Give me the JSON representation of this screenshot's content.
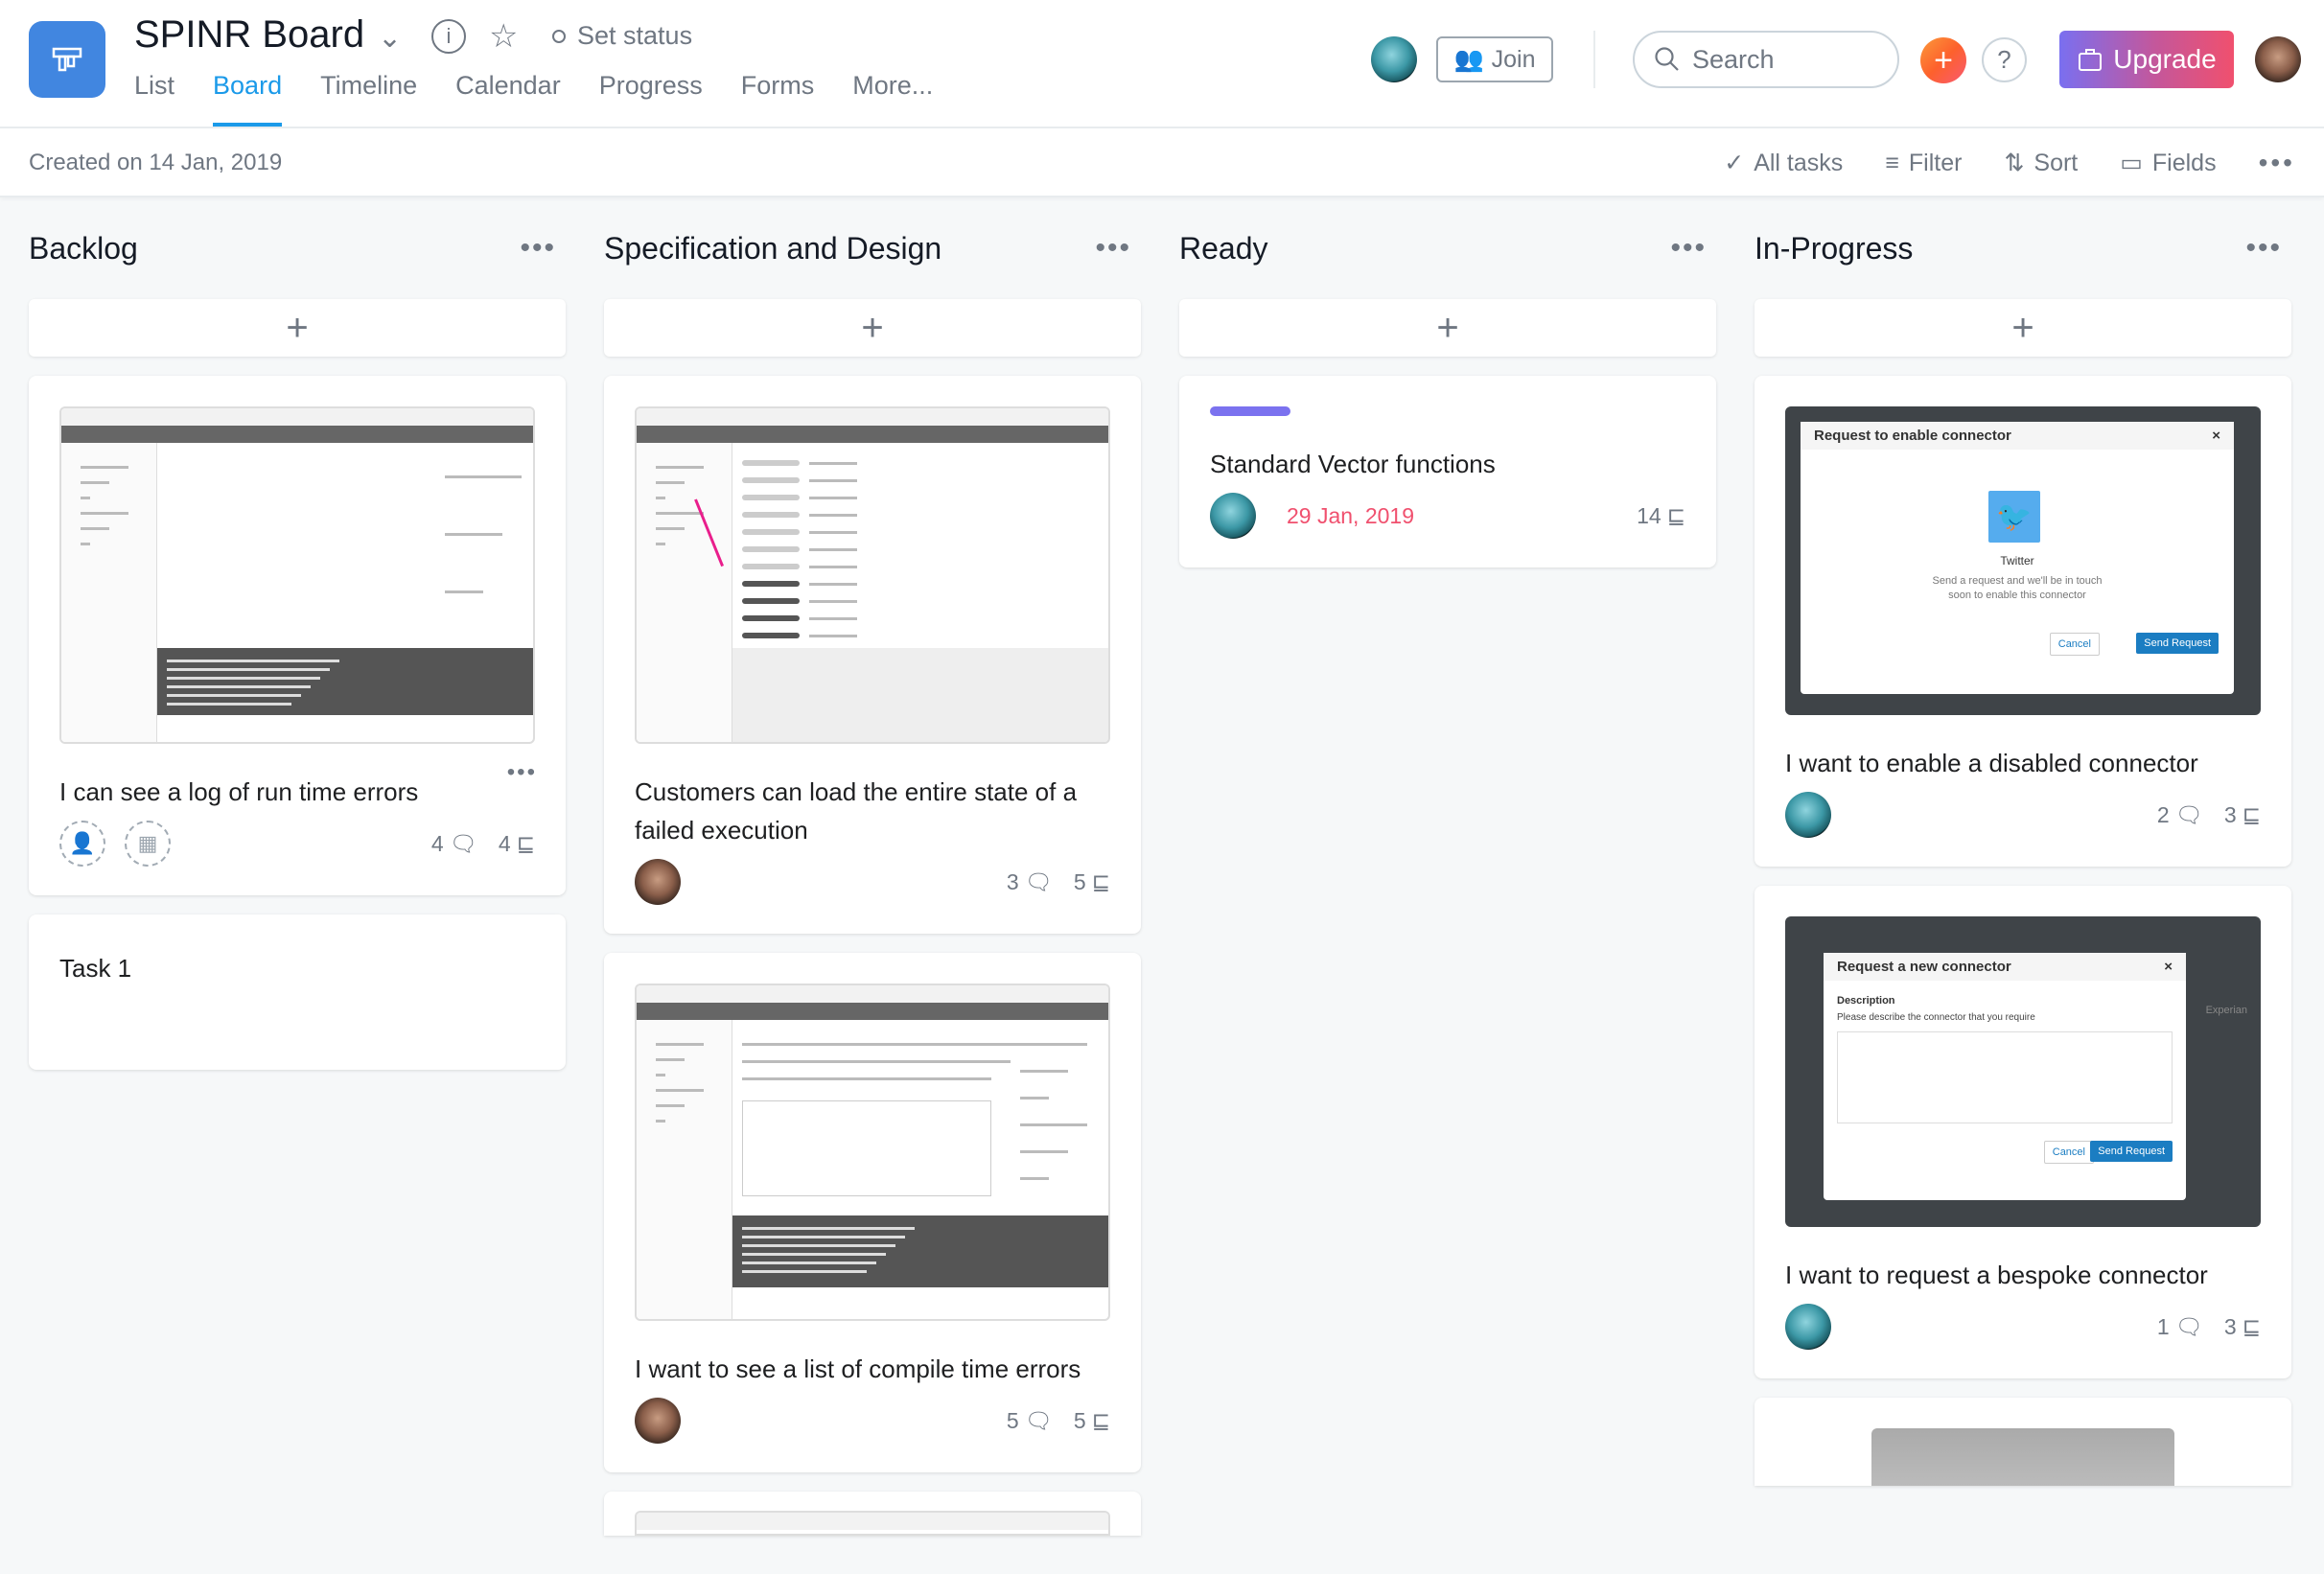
{
  "header": {
    "title": "SPINR Board",
    "set_status": "Set status",
    "tabs": [
      {
        "label": "List"
      },
      {
        "label": "Board",
        "active": true
      },
      {
        "label": "Timeline"
      },
      {
        "label": "Calendar"
      },
      {
        "label": "Progress"
      },
      {
        "label": "Forms"
      },
      {
        "label": "More..."
      }
    ],
    "join_label": "Join",
    "search_placeholder": "Search",
    "upgrade_label": "Upgrade",
    "help_label": "?"
  },
  "subheader": {
    "created": "Created on 14 Jan, 2019",
    "all_tasks": "All tasks",
    "filter": "Filter",
    "sort": "Sort",
    "fields": "Fields"
  },
  "colors": {
    "accent": "#1b9ae9",
    "due": "#f0506e",
    "label_purple": "#7b72ef"
  },
  "columns": [
    {
      "title": "Backlog",
      "cards": [
        {
          "image": "wireframe-log",
          "title": "I can see a log of run time errors",
          "assignee": "none",
          "date_placeholder": true,
          "comments": "4",
          "subtasks": "4",
          "menu": true
        },
        {
          "title": "Task 1",
          "empty": true
        }
      ]
    },
    {
      "title": "Specification and Design",
      "cards": [
        {
          "image": "wireframe-list",
          "title": "Customers can load the entire state of a failed execution",
          "assignee": "photo",
          "comments": "3",
          "subtasks": "5"
        },
        {
          "image": "wireframe-errors",
          "title": "I want to see a list of compile time errors",
          "assignee": "photo",
          "comments": "5",
          "subtasks": "5"
        },
        {
          "image": "wireframe-list",
          "partial": true
        }
      ]
    },
    {
      "title": "Ready",
      "cards": [
        {
          "label": true,
          "title": "Standard Vector functions",
          "assignee": "gem",
          "due": "29 Jan, 2019",
          "subtasks": "14"
        }
      ]
    },
    {
      "title": "In-Progress",
      "cards": [
        {
          "image": "modal-enable",
          "title": "I want to enable a disabled connector",
          "assignee": "gem",
          "comments": "2",
          "subtasks": "3",
          "modal": {
            "title": "Request to enable connector",
            "name": "Twitter",
            "text1": "Send a request and we'll be in touch",
            "text2": "soon to enable this connector",
            "cancel": "Cancel",
            "send": "Send Request"
          }
        },
        {
          "image": "modal-request",
          "title": "I want to request a bespoke connector",
          "assignee": "gem",
          "comments": "1",
          "subtasks": "3",
          "modal": {
            "title": "Request a new connector",
            "label": "Description",
            "text1": "Please describe the connector that you require",
            "cancel": "Cancel",
            "send": "Send Request",
            "bg_label": "Experian"
          }
        },
        {
          "image": "photo",
          "partial": true
        }
      ]
    }
  ]
}
